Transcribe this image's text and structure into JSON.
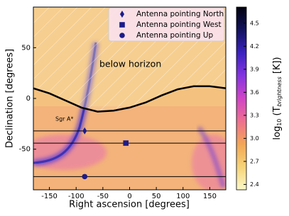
{
  "chart_data": {
    "type": "sky-map",
    "xlabel": "Right ascension [degrees]",
    "ylabel": "Declination [degrees]",
    "xlim": [
      -180,
      180
    ],
    "xticks": [
      -150,
      -100,
      -50,
      0,
      50,
      100,
      150
    ],
    "ylim": [
      -90,
      90
    ],
    "yticks": [
      -50,
      0,
      50
    ],
    "horizon": {
      "x": [
        -180,
        -150,
        -120,
        -90,
        -60,
        -30,
        0,
        30,
        60,
        90,
        120,
        150,
        180
      ],
      "values": [
        10,
        5,
        -2,
        -9,
        -13,
        -12,
        -9,
        -4,
        3,
        9,
        12,
        12,
        10
      ],
      "color": "#000000"
    },
    "annotations": [
      "below horizon",
      "Sgr A*"
    ],
    "series": [
      {
        "name": "Antenna pointing North",
        "marker": "diamond",
        "color": "#1c1c8a",
        "x": [
          -84
        ],
        "values": [
          -32
        ]
      },
      {
        "name": "Antenna pointing West",
        "marker": "square",
        "color": "#1c1c8a",
        "x": [
          -7
        ],
        "values": [
          -44
        ]
      },
      {
        "name": "Antenna pointing Up",
        "marker": "circle",
        "color": "#1c1c8a",
        "x": [
          -84
        ],
        "values": [
          -77
        ]
      }
    ],
    "legend": "upper right",
    "colorbar": {
      "label": [
        "log",
        "10",
        " (T",
        "brightness",
        " [K])"
      ],
      "lim": [
        2.33,
        4.71
      ],
      "ticks": [
        2.4,
        2.7,
        {
          "value": 3.0,
          "label": "3.0"
        },
        3.3,
        3.6,
        3.9,
        4.2,
        4.5
      ],
      "colors": [
        "#fbf7c8",
        "#f6d477",
        "#f2a656",
        "#ee7090",
        "#d044c6",
        "#8434e0",
        "#3a22c0",
        "#12125e",
        "#02020e"
      ]
    }
  }
}
